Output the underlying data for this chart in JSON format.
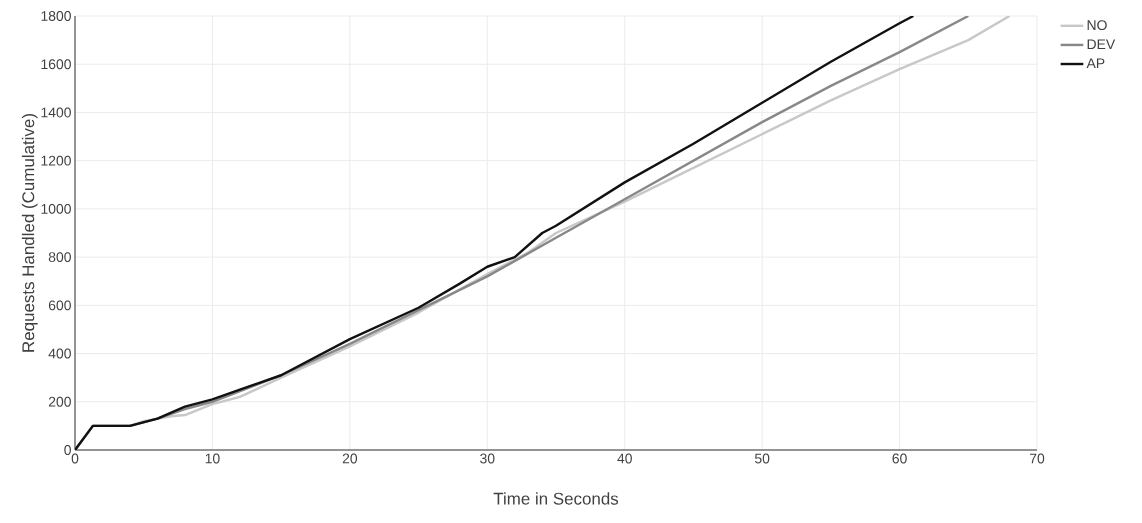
{
  "chart_data": {
    "type": "line",
    "xlabel": "Time in Seconds",
    "ylabel": "Requests Handled (Cumulative)",
    "xlim": [
      0,
      70
    ],
    "ylim": [
      0,
      1800
    ],
    "xticks": [
      0,
      10,
      20,
      30,
      40,
      50,
      60,
      70
    ],
    "yticks": [
      0,
      200,
      400,
      600,
      800,
      1000,
      1200,
      1400,
      1600,
      1800
    ],
    "grid": true,
    "legend": "top right",
    "line_style": "solid",
    "marker": "none",
    "series": [
      {
        "name": "NO",
        "color": "#c8c8c8",
        "x": [
          0,
          1.3,
          4,
          5,
          7,
          8,
          10,
          12,
          15,
          20,
          25,
          30,
          33,
          35,
          40,
          45,
          50,
          55,
          60,
          65,
          68
        ],
        "values": [
          0,
          100,
          100,
          120,
          140,
          145,
          190,
          220,
          300,
          430,
          570,
          730,
          820,
          900,
          1030,
          1170,
          1310,
          1450,
          1580,
          1700,
          1800
        ]
      },
      {
        "name": "DEV",
        "color": "#888888",
        "x": [
          0,
          1.3,
          4,
          6,
          8,
          10,
          15,
          20,
          25,
          30,
          35,
          40,
          45,
          50,
          55,
          60,
          65
        ],
        "values": [
          0,
          100,
          100,
          130,
          170,
          200,
          310,
          440,
          580,
          720,
          880,
          1040,
          1200,
          1360,
          1510,
          1650,
          1800
        ]
      },
      {
        "name": "AP",
        "color": "#111111",
        "x": [
          0,
          1.3,
          4,
          6,
          8,
          10,
          12,
          15,
          20,
          25,
          28,
          30,
          32,
          34,
          35,
          40,
          45,
          50,
          55,
          60,
          61
        ],
        "values": [
          0,
          100,
          100,
          130,
          180,
          210,
          250,
          310,
          460,
          590,
          690,
          760,
          800,
          900,
          930,
          1110,
          1270,
          1440,
          1610,
          1770,
          1800
        ]
      }
    ]
  }
}
